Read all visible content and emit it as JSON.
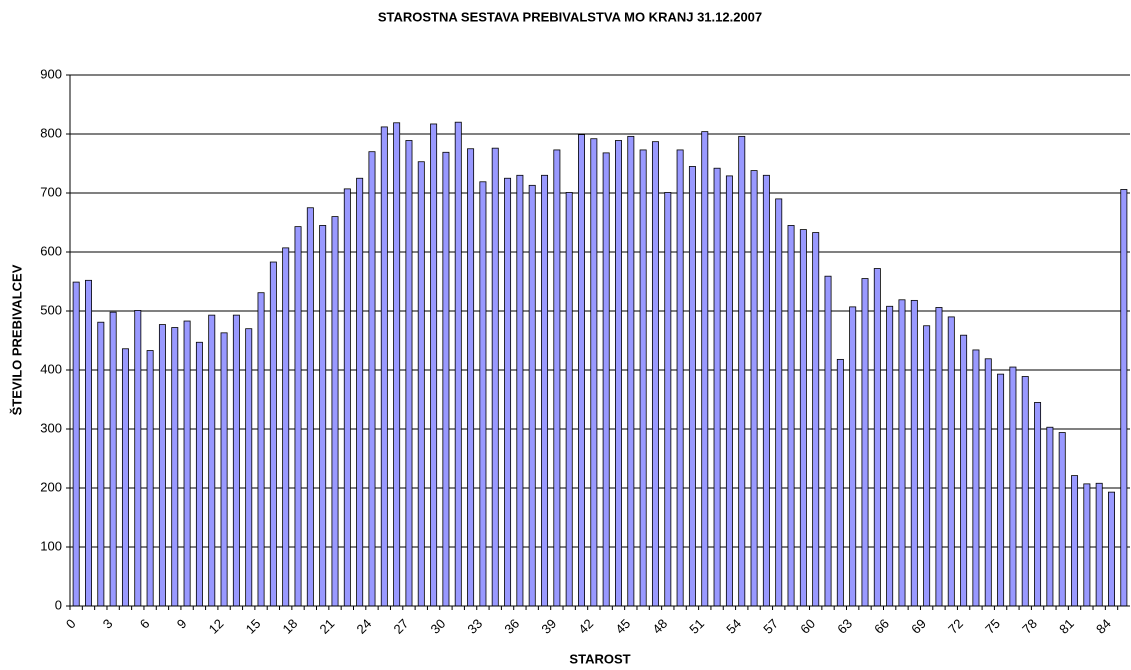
{
  "chart_data": {
    "type": "bar",
    "title": "STAROSTNA SESTAVA PREBIVALSTVA MO KRANJ 31.12.2007",
    "x_label": "STAROST",
    "y_label": "ŠTEVILO PREBIVALCEV",
    "categories": [
      "0",
      null,
      null,
      "3",
      null,
      null,
      "6",
      null,
      null,
      "9",
      null,
      null,
      "12",
      null,
      null,
      "15",
      null,
      null,
      "18",
      null,
      null,
      "21",
      null,
      null,
      "24",
      null,
      null,
      "27",
      null,
      null,
      "30",
      null,
      null,
      "33",
      null,
      null,
      "36",
      null,
      null,
      "39",
      null,
      null,
      "42",
      null,
      null,
      "45",
      null,
      null,
      "48",
      null,
      null,
      "51",
      null,
      null,
      "54",
      null,
      null,
      "57",
      null,
      null,
      "60",
      null,
      null,
      "63",
      null,
      null,
      "66",
      null,
      null,
      "69",
      null,
      null,
      "72",
      null,
      null,
      "75",
      null,
      null,
      "78",
      null,
      null,
      "81",
      null,
      null,
      "84",
      null
    ],
    "values": [
      549,
      552,
      481,
      498,
      436,
      501,
      433,
      477,
      472,
      483,
      447,
      493,
      463,
      493,
      470,
      531,
      583,
      607,
      643,
      675,
      645,
      660,
      707,
      725,
      770,
      812,
      819,
      789,
      753,
      817,
      769,
      820,
      775,
      719,
      776,
      725,
      730,
      713,
      730,
      773,
      701,
      799,
      792,
      768,
      789,
      796,
      773,
      787,
      701,
      773,
      745,
      804,
      742,
      729,
      796,
      738,
      730,
      690,
      645,
      638,
      633,
      559,
      418,
      507,
      555,
      572,
      508,
      519,
      518,
      475,
      506,
      490,
      459,
      434,
      419,
      393,
      405,
      389,
      345,
      303,
      294,
      221,
      207,
      208,
      193,
      706
    ],
    "color": "#9999ff",
    "ylim": [
      0,
      900
    ],
    "yticks": [
      0,
      100,
      200,
      300,
      400,
      500,
      600,
      700,
      800,
      900
    ],
    "grid": true
  }
}
